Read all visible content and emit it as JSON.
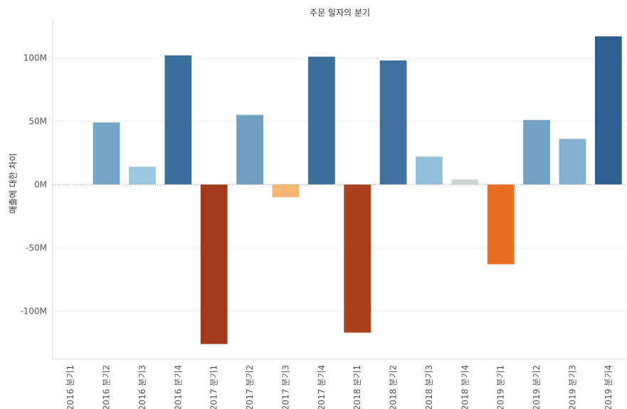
{
  "chart_data": {
    "type": "bar",
    "title": "주문 일자의 분기",
    "xlabel": "",
    "ylabel": "매출에 대한 차이",
    "categories": [
      "2016 분기1",
      "2016 분기2",
      "2016 분기3",
      "2016 분기4",
      "2017 분기1",
      "2017 분기2",
      "2017 분기3",
      "2017 분기4",
      "2018 분기1",
      "2018 분기2",
      "2018 분기3",
      "2018 분기4",
      "2019 분기1",
      "2019 분기2",
      "2019 분기3",
      "2019 분기4"
    ],
    "values": [
      0,
      49000000,
      14000000,
      102000000,
      -126000000,
      55000000,
      -10000000,
      101000000,
      -117000000,
      98000000,
      22000000,
      4000000,
      -63000000,
      51000000,
      36000000,
      117000000
    ],
    "ylim": [
      -138000000,
      130000000
    ],
    "yticks": [
      -100000000,
      -50000000,
      0,
      50000000,
      100000000
    ],
    "ytick_labels": [
      "-100M",
      "-50M",
      "0M",
      "50M",
      "100M"
    ],
    "grid": true,
    "colors": {
      "positive_light": "#9ecae1",
      "positive_dark": "#2c5f91",
      "negative_light": "#f6c37f",
      "negative_mid": "#e86e22",
      "negative_dark": "#a23a1e",
      "neutral": "#c9d3cf"
    }
  }
}
